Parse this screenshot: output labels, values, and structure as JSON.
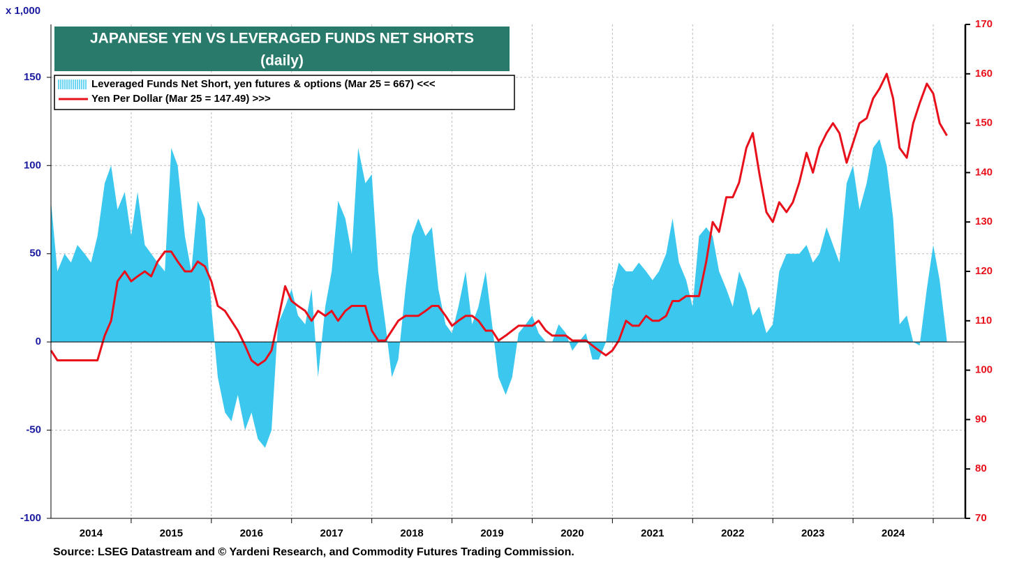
{
  "chart_data": {
    "type": "area_line",
    "title": "JAPANESE YEN VS LEVERAGED FUNDS NET SHORTS",
    "subtitle": "(daily)",
    "y_unit_label": "x 1,000",
    "source": "Source: LSEG Datastream and © Yardeni Research, and Commodity Futures Trading Commission.",
    "xlim": [
      2014,
      2025.4
    ],
    "xticks": [
      {
        "value": 2014.5,
        "label": "2014"
      },
      {
        "value": 2015.5,
        "label": "2015"
      },
      {
        "value": 2016.5,
        "label": "2016"
      },
      {
        "value": 2017.5,
        "label": "2017"
      },
      {
        "value": 2018.5,
        "label": "2018"
      },
      {
        "value": 2019.5,
        "label": "2019"
      },
      {
        "value": 2020.5,
        "label": "2020"
      },
      {
        "value": 2021.5,
        "label": "2021"
      },
      {
        "value": 2022.5,
        "label": "2022"
      },
      {
        "value": 2023.5,
        "label": "2023"
      },
      {
        "value": 2024.5,
        "label": "2024"
      }
    ],
    "xgrid": [
      2015,
      2016,
      2017,
      2018,
      2019,
      2020,
      2021,
      2022,
      2023,
      2024,
      2025
    ],
    "ylim": [
      -100,
      180
    ],
    "yticks": [
      -100,
      -50,
      0,
      50,
      100,
      150
    ],
    "y2lim": [
      70,
      170
    ],
    "y2ticks": [
      70,
      80,
      90,
      100,
      110,
      120,
      130,
      140,
      150,
      160,
      170
    ],
    "grid": true,
    "x": [
      2014,
      2014.08,
      2014.17,
      2014.25,
      2014.33,
      2014.42,
      2014.5,
      2014.58,
      2014.67,
      2014.75,
      2014.83,
      2014.92,
      2015,
      2015.08,
      2015.17,
      2015.25,
      2015.33,
      2015.42,
      2015.5,
      2015.58,
      2015.67,
      2015.75,
      2015.83,
      2015.92,
      2016,
      2016.08,
      2016.17,
      2016.25,
      2016.33,
      2016.42,
      2016.5,
      2016.58,
      2016.67,
      2016.75,
      2016.83,
      2016.92,
      2017,
      2017.08,
      2017.17,
      2017.25,
      2017.33,
      2017.42,
      2017.5,
      2017.58,
      2017.67,
      2017.75,
      2017.83,
      2017.92,
      2018,
      2018.08,
      2018.17,
      2018.25,
      2018.33,
      2018.42,
      2018.5,
      2018.58,
      2018.67,
      2018.75,
      2018.83,
      2018.92,
      2019,
      2019.08,
      2019.17,
      2019.25,
      2019.33,
      2019.42,
      2019.5,
      2019.58,
      2019.67,
      2019.75,
      2019.83,
      2019.92,
      2020,
      2020.08,
      2020.17,
      2020.25,
      2020.33,
      2020.42,
      2020.5,
      2020.58,
      2020.67,
      2020.75,
      2020.83,
      2020.92,
      2021,
      2021.08,
      2021.17,
      2021.25,
      2021.33,
      2021.42,
      2021.5,
      2021.58,
      2021.67,
      2021.75,
      2021.83,
      2021.92,
      2022,
      2022.08,
      2022.17,
      2022.25,
      2022.33,
      2022.42,
      2022.5,
      2022.58,
      2022.67,
      2022.75,
      2022.83,
      2022.92,
      2023,
      2023.08,
      2023.17,
      2023.25,
      2023.33,
      2023.42,
      2023.5,
      2023.58,
      2023.67,
      2023.75,
      2023.83,
      2023.92,
      2024,
      2024.08,
      2024.17,
      2024.25,
      2024.33,
      2024.42,
      2024.5,
      2024.58,
      2024.67,
      2024.75,
      2024.83,
      2024.92,
      2025,
      2025.08,
      2025.17
    ],
    "series": [
      {
        "name": "Leveraged Funds Net Short, yen futures & options (Mar 25 = 667) <<<",
        "color": "#3cc8ee",
        "axis": "y",
        "values": [
          80,
          40,
          50,
          45,
          55,
          50,
          45,
          60,
          90,
          100,
          75,
          85,
          60,
          85,
          55,
          50,
          45,
          40,
          110,
          100,
          60,
          40,
          80,
          70,
          20,
          -20,
          -40,
          -45,
          -30,
          -50,
          -40,
          -55,
          -60,
          -50,
          10,
          20,
          30,
          15,
          10,
          30,
          -20,
          20,
          40,
          80,
          70,
          50,
          110,
          90,
          95,
          40,
          10,
          -20,
          -10,
          30,
          60,
          70,
          60,
          65,
          30,
          10,
          5,
          20,
          40,
          10,
          20,
          40,
          10,
          -20,
          -30,
          -20,
          5,
          10,
          15,
          5,
          0,
          0,
          10,
          5,
          -5,
          0,
          5,
          -10,
          -10,
          0,
          30,
          45,
          40,
          40,
          45,
          40,
          35,
          40,
          50,
          70,
          45,
          35,
          20,
          60,
          65,
          60,
          40,
          30,
          20,
          40,
          30,
          15,
          20,
          5,
          10,
          40,
          50,
          50,
          50,
          55,
          45,
          50,
          65,
          55,
          45,
          90,
          100,
          75,
          90,
          110,
          115,
          100,
          70,
          10,
          15,
          0,
          -2,
          30,
          55,
          35,
          0.667
        ]
      },
      {
        "name": "Yen Per Dollar (Mar 25 = 147.49) >>>",
        "color": "#e8101a",
        "axis": "y2",
        "values": [
          104,
          102,
          102,
          102,
          102,
          102,
          102,
          102,
          107,
          110,
          118,
          120,
          118,
          119,
          120,
          119,
          122,
          124,
          124,
          122,
          120,
          120,
          122,
          121,
          118,
          113,
          112,
          110,
          108,
          105,
          102,
          101,
          102,
          104,
          110,
          117,
          114,
          113,
          112,
          110,
          112,
          111,
          112,
          110,
          112,
          113,
          113,
          113,
          108,
          106,
          106,
          108,
          110,
          111,
          111,
          111,
          112,
          113,
          113,
          111,
          109,
          110,
          111,
          111,
          110,
          108,
          108,
          106,
          107,
          108,
          109,
          109,
          109,
          110,
          108,
          107,
          107,
          107,
          106,
          106,
          106,
          105,
          104,
          103,
          104,
          106,
          110,
          109,
          109,
          111,
          110,
          110,
          111,
          114,
          114,
          115,
          115,
          115,
          122,
          130,
          128,
          135,
          135,
          138,
          145,
          148,
          140,
          132,
          130,
          134,
          132,
          134,
          138,
          144,
          140,
          145,
          148,
          150,
          148,
          142,
          146,
          150,
          151,
          155,
          157,
          160,
          155,
          145,
          143,
          150,
          154,
          158,
          156,
          150,
          147.49
        ]
      }
    ]
  }
}
